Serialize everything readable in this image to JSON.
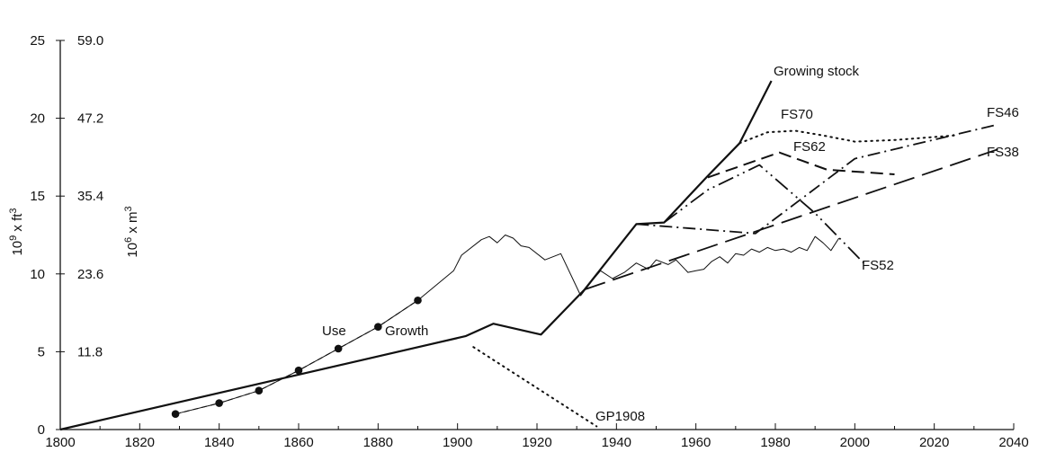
{
  "chart_data": {
    "type": "line",
    "title": "",
    "xlabel": "",
    "ylabel": "10^9 x ft^3",
    "ylabel_secondary": "10^6 x m^3",
    "xlim": [
      1800,
      2040
    ],
    "ylim": [
      0,
      25
    ],
    "x_ticks": [
      1800,
      1820,
      1840,
      1860,
      1880,
      1900,
      1920,
      1940,
      1960,
      1980,
      2000,
      2020,
      2040
    ],
    "x_tick_labels": [
      "1800",
      "1820",
      "1840",
      "1860",
      "1880",
      "1900",
      "1920",
      "1940",
      "1960",
      "1980",
      "2000",
      "2020",
      "2040"
    ],
    "y_ticks": [
      0,
      5,
      10,
      15,
      20,
      25
    ],
    "y_tick_labels": [
      "0",
      "5",
      "10",
      "15",
      "20",
      "25"
    ],
    "y2_tick_labels": [
      "11.8",
      "23.6",
      "35.4",
      "47.2",
      "59.0"
    ],
    "grid": false,
    "series": [
      {
        "name": "Growing stock",
        "label": "Growing stock",
        "style": "solid",
        "points": [
          [
            1800,
            0
          ],
          [
            1902,
            6.0
          ],
          [
            1909,
            6.8
          ],
          [
            1921,
            6.1
          ],
          [
            1932,
            9.0
          ],
          [
            1945,
            13.2
          ],
          [
            1952,
            13.3
          ],
          [
            1963,
            16.3
          ],
          [
            1971,
            18.4
          ],
          [
            1979,
            22.4
          ]
        ]
      },
      {
        "name": "Use",
        "label": "Use",
        "style": "thin",
        "points": [
          [
            1829,
            1.0
          ],
          [
            1840,
            1.7
          ],
          [
            1850,
            2.5
          ],
          [
            1860,
            3.8
          ],
          [
            1870,
            5.2
          ],
          [
            1880,
            6.6
          ],
          [
            1890,
            8.3
          ],
          [
            1899,
            10.2
          ],
          [
            1901,
            11.2
          ],
          [
            1906,
            12.2
          ],
          [
            1908,
            12.4
          ],
          [
            1910,
            12.0
          ],
          [
            1912,
            12.5
          ],
          [
            1914,
            12.3
          ],
          [
            1916,
            11.8
          ],
          [
            1918,
            11.7
          ],
          [
            1922,
            10.9
          ],
          [
            1926,
            11.3
          ],
          [
            1931,
            8.6
          ],
          [
            1934,
            9.6
          ],
          [
            1936,
            10.2
          ],
          [
            1939,
            9.7
          ],
          [
            1942,
            10.1
          ],
          [
            1945,
            10.7
          ],
          [
            1948,
            10.3
          ],
          [
            1950,
            10.9
          ],
          [
            1953,
            10.6
          ],
          [
            1955,
            10.9
          ],
          [
            1958,
            10.1
          ],
          [
            1960,
            10.2
          ],
          [
            1962,
            10.3
          ],
          [
            1964,
            10.8
          ],
          [
            1966,
            11.1
          ],
          [
            1968,
            10.7
          ],
          [
            1970,
            11.3
          ],
          [
            1972,
            11.2
          ],
          [
            1974,
            11.6
          ],
          [
            1976,
            11.4
          ],
          [
            1978,
            11.7
          ],
          [
            1980,
            11.5
          ],
          [
            1982,
            11.6
          ],
          [
            1984,
            11.4
          ],
          [
            1986,
            11.7
          ],
          [
            1988,
            11.5
          ],
          [
            1990,
            12.4
          ],
          [
            1992,
            12.0
          ],
          [
            1994,
            11.5
          ],
          [
            1996,
            12.3
          ]
        ]
      },
      {
        "name": "Growth",
        "label": "Growth",
        "style": "dashed-dots",
        "points": [
          [
            1829,
            1.0
          ],
          [
            1840,
            1.7
          ],
          [
            1850,
            2.5
          ],
          [
            1860,
            3.8
          ],
          [
            1870,
            5.2
          ],
          [
            1880,
            6.6
          ],
          [
            1890,
            8.3
          ]
        ],
        "markers": [
          [
            1829,
            1.0
          ],
          [
            1840,
            1.7
          ],
          [
            1850,
            2.5
          ],
          [
            1860,
            3.8
          ],
          [
            1870,
            5.2
          ],
          [
            1880,
            6.6
          ],
          [
            1890,
            8.3
          ]
        ]
      },
      {
        "name": "GP1908",
        "label": "GP1908",
        "style": "dotted",
        "points": [
          [
            1904,
            5.3
          ],
          [
            1935,
            0.2
          ]
        ]
      },
      {
        "name": "FS70",
        "label": "FS70",
        "style": "dotted",
        "points": [
          [
            1971,
            18.4
          ],
          [
            1978,
            19.1
          ],
          [
            1985,
            19.2
          ],
          [
            1992,
            18.9
          ],
          [
            2000,
            18.5
          ],
          [
            2010,
            18.6
          ],
          [
            2025,
            18.9
          ]
        ]
      },
      {
        "name": "FS62",
        "label": "FS62",
        "style": "dashed",
        "points": [
          [
            1963,
            16.2
          ],
          [
            1981,
            17.8
          ],
          [
            1993,
            16.7
          ],
          [
            2010,
            16.4
          ]
        ]
      },
      {
        "name": "FS52",
        "label": "FS52",
        "style": "dash-dot-dot",
        "points": [
          [
            1952,
            13.3
          ],
          [
            1963,
            15.4
          ],
          [
            1976,
            17.0
          ],
          [
            1990,
            13.9
          ],
          [
            2003,
            10.5
          ]
        ]
      },
      {
        "name": "FS46",
        "label": "FS46",
        "style": "dash-dot",
        "points": [
          [
            1945,
            13.2
          ],
          [
            1975,
            12.6
          ],
          [
            2000,
            17.4
          ],
          [
            2036,
            19.6
          ]
        ]
      },
      {
        "name": "FS38",
        "label": "FS38",
        "style": "long-dash",
        "points": [
          [
            1932,
            9.0
          ],
          [
            2036,
            18.0
          ]
        ]
      }
    ]
  }
}
